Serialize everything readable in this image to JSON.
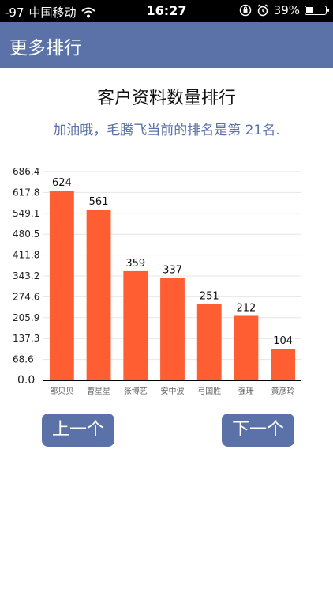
{
  "status_bar": {
    "signal": "-97",
    "carrier": "中国移动",
    "time": "16:27",
    "battery": "39%",
    "battery_level": 0.39
  },
  "nav": {
    "title": "更多排行"
  },
  "page": {
    "title": "客户资料数量排行",
    "subtitle": "加油哦，毛腾飞当前的排名是第 21名."
  },
  "buttons": {
    "prev": "上一个",
    "next": "下一个"
  },
  "colors": {
    "accent": "#5b72a8",
    "bar": "#ff5e33"
  },
  "chart_data": {
    "type": "bar",
    "categories": [
      "邹贝贝",
      "曹星星",
      "张博艺",
      "安中波",
      "弓国胜",
      "强珊",
      "黄彦玲"
    ],
    "values": [
      624,
      561,
      359,
      337,
      251,
      212,
      104
    ],
    "y_ticks": [
      "686.4",
      "617.8",
      "549.1",
      "480.5",
      "411.8",
      "343.2",
      "274.6",
      "205.9",
      "137.3",
      "68.6",
      "0.0"
    ],
    "ylim": [
      0,
      686.4
    ],
    "grid": true
  }
}
